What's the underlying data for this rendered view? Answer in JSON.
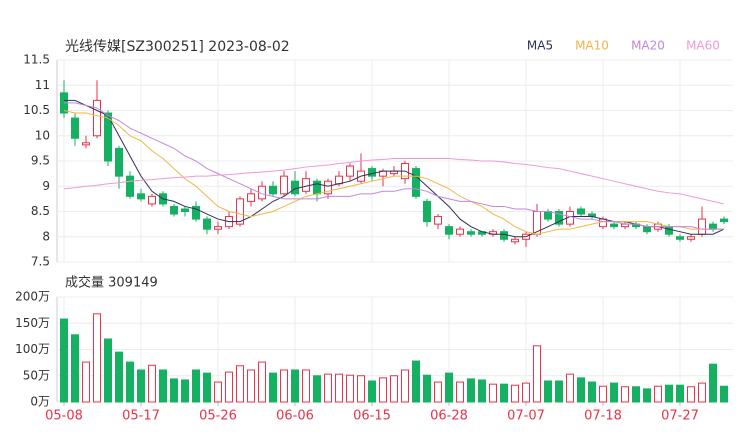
{
  "chart_data": [
    {
      "type": "candlestick",
      "title": "光线传媒[SZ300251] 2023-08-02",
      "categories": [
        "05-08",
        null,
        null,
        null,
        null,
        null,
        null,
        "05-17",
        null,
        null,
        null,
        null,
        null,
        null,
        "05-26",
        null,
        null,
        null,
        null,
        null,
        null,
        "06-06",
        null,
        null,
        null,
        null,
        null,
        null,
        "06-15",
        null,
        null,
        null,
        null,
        null,
        null,
        "06-28",
        null,
        null,
        null,
        null,
        null,
        null,
        "07-07",
        null,
        null,
        null,
        null,
        null,
        null,
        "07-18",
        null,
        null,
        null,
        null,
        null,
        null,
        "07-27",
        null,
        null,
        null,
        null
      ],
      "open": [
        10.85,
        10.35,
        9.82,
        10.0,
        10.45,
        9.75,
        9.2,
        8.85,
        8.65,
        8.85,
        8.6,
        8.55,
        8.6,
        8.35,
        8.15,
        8.2,
        8.25,
        8.7,
        8.75,
        9.0,
        8.85,
        9.1,
        8.9,
        9.1,
        8.85,
        9.05,
        9.2,
        9.1,
        9.35,
        9.2,
        9.25,
        9.15,
        9.35,
        8.7,
        8.25,
        8.2,
        8.05,
        8.1,
        8.1,
        8.05,
        8.1,
        7.9,
        7.95,
        8.05,
        8.5,
        8.5,
        8.25,
        8.55,
        8.45,
        8.2,
        8.25,
        8.2,
        8.25,
        8.2,
        8.15,
        8.2,
        8.0,
        7.95,
        8.05,
        8.25,
        8.35
      ],
      "high": [
        11.1,
        10.45,
        10.0,
        11.1,
        10.5,
        9.8,
        9.3,
        8.95,
        8.85,
        8.9,
        8.65,
        8.6,
        8.7,
        8.4,
        8.3,
        8.5,
        8.8,
        8.95,
        9.1,
        9.1,
        9.3,
        9.3,
        9.3,
        9.15,
        9.15,
        9.3,
        9.45,
        9.65,
        9.4,
        9.35,
        9.4,
        9.5,
        9.4,
        8.75,
        8.45,
        8.25,
        8.2,
        8.15,
        8.1,
        8.15,
        8.15,
        8.0,
        8.1,
        8.65,
        8.55,
        8.55,
        8.6,
        8.6,
        8.5,
        8.4,
        8.3,
        8.3,
        8.3,
        8.25,
        8.3,
        8.25,
        8.05,
        8.05,
        8.6,
        8.3,
        8.4
      ],
      "low": [
        10.35,
        9.8,
        9.75,
        9.95,
        9.4,
        8.95,
        8.75,
        8.7,
        8.6,
        8.6,
        8.4,
        8.4,
        8.3,
        8.05,
        8.05,
        8.15,
        8.2,
        8.6,
        8.7,
        8.8,
        8.8,
        8.8,
        8.85,
        8.7,
        8.75,
        9.0,
        9.1,
        9.05,
        9.1,
        9.0,
        9.2,
        9.05,
        8.75,
        8.2,
        8.15,
        7.95,
        8.0,
        8.0,
        8.0,
        8.0,
        7.9,
        7.85,
        7.8,
        8.0,
        8.3,
        8.2,
        8.2,
        8.4,
        8.35,
        8.15,
        8.15,
        8.15,
        8.15,
        8.05,
        8.1,
        8.0,
        7.9,
        7.9,
        8.0,
        8.1,
        8.25
      ],
      "close": [
        10.45,
        9.95,
        9.86,
        10.7,
        9.5,
        9.2,
        8.8,
        8.75,
        8.8,
        8.65,
        8.45,
        8.5,
        8.35,
        8.15,
        8.2,
        8.4,
        8.75,
        8.85,
        9.0,
        8.85,
        9.2,
        8.85,
        9.15,
        8.85,
        9.1,
        9.2,
        9.4,
        9.3,
        9.2,
        9.3,
        9.3,
        9.45,
        8.8,
        8.3,
        8.4,
        8.05,
        8.15,
        8.05,
        8.05,
        8.1,
        7.95,
        7.95,
        8.05,
        8.5,
        8.35,
        8.25,
        8.5,
        8.45,
        8.4,
        8.35,
        8.2,
        8.25,
        8.2,
        8.1,
        8.25,
        8.05,
        7.95,
        8.0,
        8.35,
        8.15,
        8.3
      ],
      "up_color": "#e8334a",
      "down_color": "#16b062",
      "series": [
        {
          "name": "MA5",
          "color": "#2e3158",
          "values": [
            10.7,
            10.7,
            10.6,
            10.5,
            10.4,
            10.0,
            9.6,
            9.2,
            8.9,
            8.75,
            8.7,
            8.6,
            8.55,
            8.45,
            8.35,
            8.3,
            8.3,
            8.4,
            8.55,
            8.7,
            8.8,
            8.95,
            9.0,
            9.05,
            9.0,
            9.05,
            9.1,
            9.2,
            9.25,
            9.3,
            9.3,
            9.3,
            9.2,
            9.0,
            8.8,
            8.6,
            8.35,
            8.2,
            8.1,
            8.05,
            8.05,
            8.0,
            8.0,
            8.1,
            8.2,
            8.3,
            8.4,
            8.4,
            8.4,
            8.35,
            8.3,
            8.3,
            8.25,
            8.2,
            8.2,
            8.15,
            8.1,
            8.05,
            8.05,
            8.05,
            8.15
          ]
        },
        {
          "name": "MA10",
          "color": "#f2b546",
          "values": [
            10.5,
            10.45,
            10.45,
            10.4,
            10.35,
            10.2,
            10.0,
            9.9,
            9.7,
            9.55,
            9.35,
            9.15,
            9.0,
            8.8,
            8.6,
            8.5,
            8.45,
            8.4,
            8.45,
            8.5,
            8.6,
            8.7,
            8.8,
            8.85,
            8.9,
            8.95,
            9.0,
            9.05,
            9.1,
            9.15,
            9.2,
            9.2,
            9.2,
            9.15,
            9.05,
            8.95,
            8.8,
            8.7,
            8.6,
            8.45,
            8.35,
            8.2,
            8.1,
            8.05,
            8.1,
            8.15,
            8.15,
            8.2,
            8.25,
            8.3,
            8.3,
            8.3,
            8.3,
            8.3,
            8.25,
            8.2,
            8.2,
            8.15,
            8.15,
            8.15,
            8.15
          ]
        },
        {
          "name": "MA20",
          "color": "#c186e0",
          "values": [
            10.65,
            10.65,
            10.6,
            10.55,
            10.4,
            10.3,
            10.15,
            10.05,
            9.95,
            9.85,
            9.75,
            9.6,
            9.5,
            9.35,
            9.25,
            9.15,
            9.05,
            8.95,
            8.85,
            8.8,
            8.75,
            8.75,
            8.75,
            8.75,
            8.8,
            8.8,
            8.8,
            8.85,
            8.85,
            8.9,
            8.9,
            8.95,
            8.95,
            8.9,
            8.8,
            8.75,
            8.7,
            8.7,
            8.65,
            8.6,
            8.6,
            8.55,
            8.55,
            8.5,
            8.5,
            8.45,
            8.4,
            8.35,
            8.35,
            8.3,
            8.3,
            8.25,
            8.25,
            8.2,
            8.2,
            8.2,
            8.2,
            8.2,
            8.15,
            8.15,
            8.15
          ]
        },
        {
          "name": "MA60",
          "color": "#f09ad2",
          "values": [
            8.95,
            8.97,
            9.0,
            9.02,
            9.05,
            9.07,
            9.1,
            9.12,
            9.13,
            9.15,
            9.17,
            9.18,
            9.2,
            9.2,
            9.22,
            9.23,
            9.25,
            9.27,
            9.28,
            9.3,
            9.32,
            9.35,
            9.38,
            9.4,
            9.42,
            9.45,
            9.47,
            9.5,
            9.52,
            9.53,
            9.55,
            9.55,
            9.55,
            9.55,
            9.55,
            9.55,
            9.53,
            9.52,
            9.5,
            9.5,
            9.48,
            9.45,
            9.43,
            9.4,
            9.37,
            9.35,
            9.3,
            9.25,
            9.2,
            9.15,
            9.1,
            9.05,
            9.0,
            8.95,
            8.9,
            8.87,
            8.85,
            8.8,
            8.75,
            8.7,
            8.65
          ]
        }
      ],
      "ylim": [
        7.5,
        11.5
      ],
      "yticks": [
        7.5,
        8,
        8.5,
        9,
        9.5,
        10,
        10.5,
        11,
        11.5
      ],
      "grid": true
    },
    {
      "type": "bar",
      "title": "成交量 309149",
      "values": [
        158,
        128,
        76,
        168,
        120,
        95,
        76,
        61,
        70,
        61,
        44,
        42,
        61,
        55,
        38,
        57,
        69,
        61,
        76,
        55,
        61,
        61,
        61,
        50,
        53,
        53,
        51,
        50,
        40,
        46,
        50,
        61,
        78,
        51,
        38,
        55,
        38,
        44,
        42,
        34,
        34,
        32,
        36,
        107,
        40,
        40,
        53,
        46,
        38,
        30,
        36,
        29,
        29,
        25,
        30,
        32,
        32,
        29,
        36,
        72,
        30
      ],
      "ylim": [
        0,
        200
      ],
      "yticks": [
        {
          "value": 0,
          "label": "0万"
        },
        {
          "value": 50,
          "label": "50万"
        },
        {
          "value": 100,
          "label": "100万"
        },
        {
          "value": 150,
          "label": "150万"
        },
        {
          "value": 200,
          "label": "200万"
        }
      ],
      "grid": true
    }
  ]
}
